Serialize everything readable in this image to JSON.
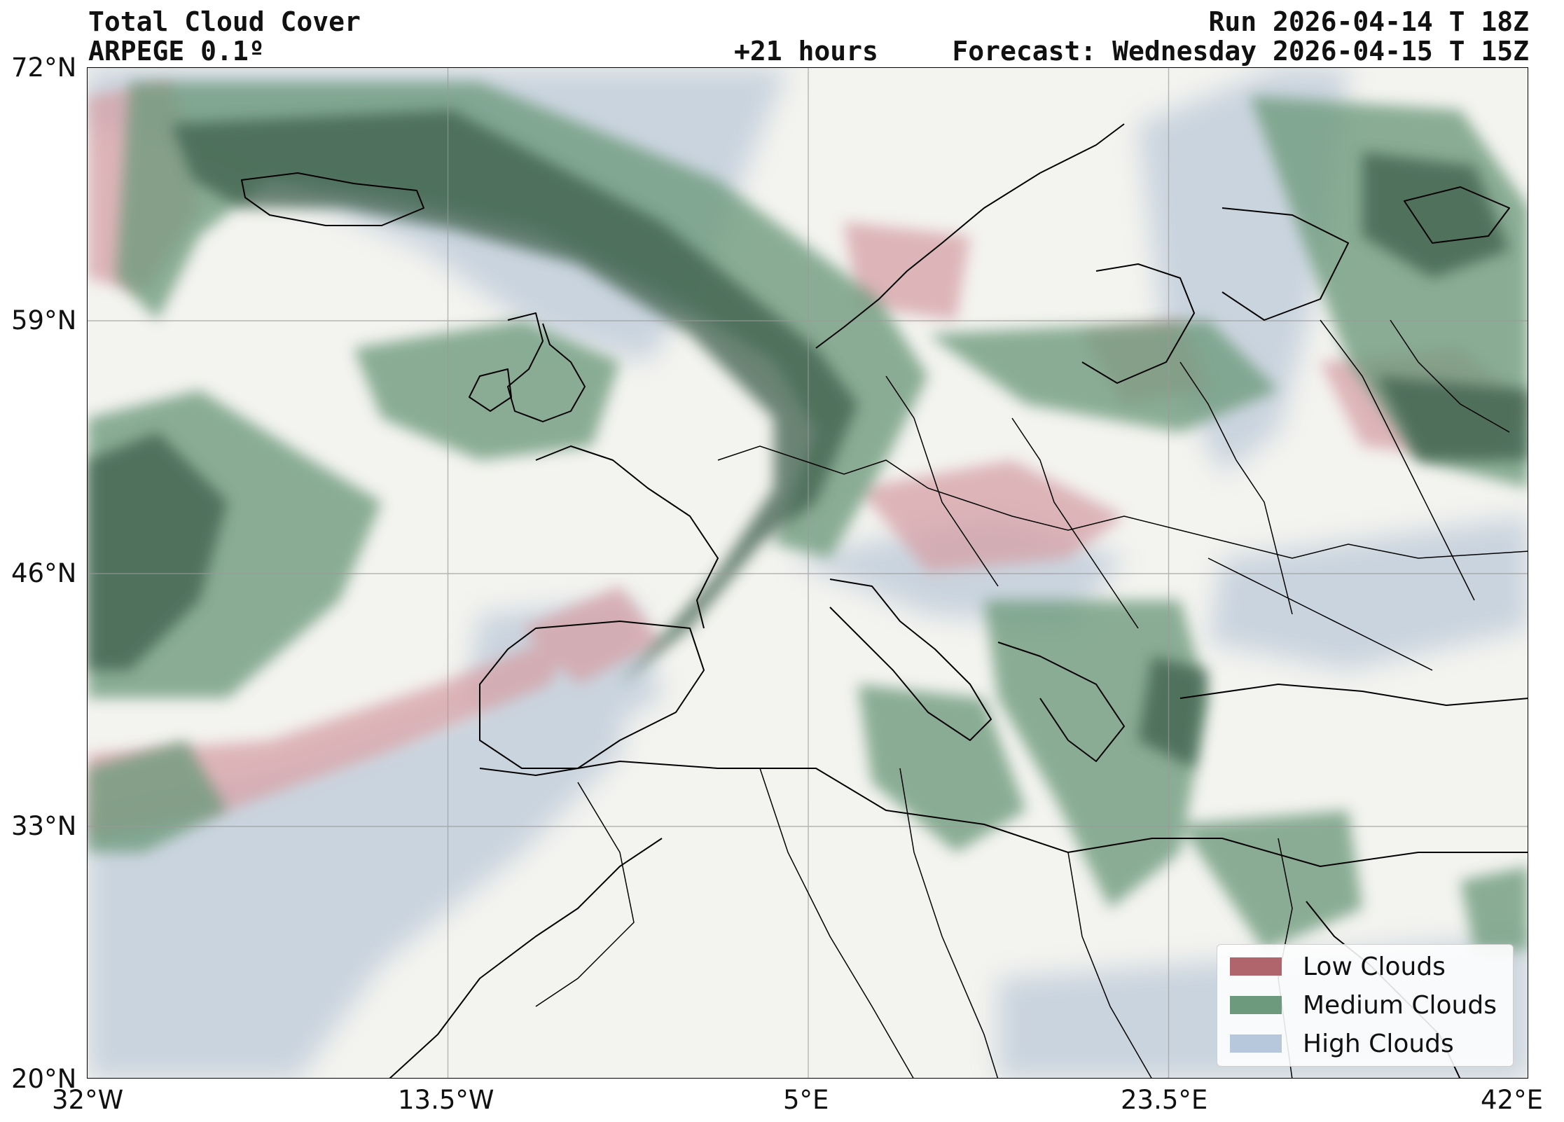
{
  "header": {
    "title": "Total Cloud Cover",
    "model": "ARPEGE 0.1º",
    "run": "Run 2026-04-14 T 18Z",
    "lead": "+21 hours",
    "forecast": "Forecast: Wednesday 2026-04-15 T 15Z"
  },
  "map": {
    "extent": {
      "lon_min": -32,
      "lon_max": 42,
      "lat_min": 20,
      "lat_max": 72
    },
    "lat_ticks": [
      "72°N",
      "59°N",
      "46°N",
      "33°N",
      "20°N"
    ],
    "lon_ticks": [
      "32°W",
      "13.5°W",
      "5°E",
      "23.5°E",
      "42°E"
    ],
    "gridlines": true
  },
  "legend": {
    "placement": "bottom-right",
    "items": [
      {
        "label": "Low Clouds",
        "color": "#b0646c"
      },
      {
        "label": "Medium Clouds",
        "color": "#6d9a7c"
      },
      {
        "label": "High Clouds",
        "color": "#b8c8dc"
      }
    ]
  }
}
